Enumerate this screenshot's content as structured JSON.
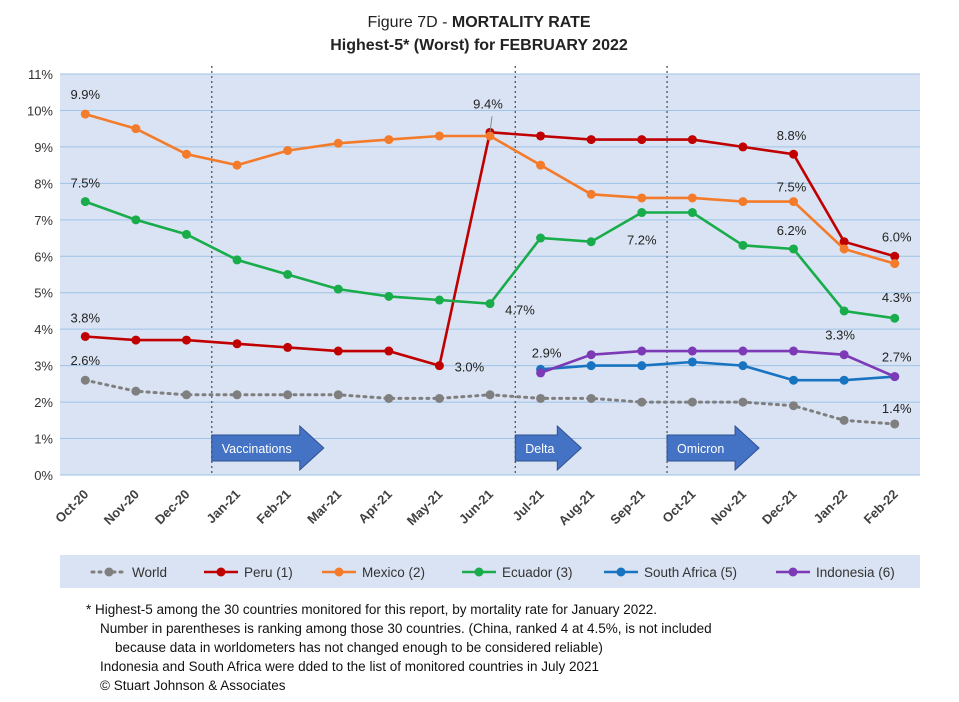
{
  "figure": {
    "title_prefix": "Figure 7D  - ",
    "title_bold": "MORTALITY RATE",
    "subtitle": "Highest-5* (Worst) for FEBRUARY 2022"
  },
  "chart_data": {
    "type": "line",
    "categories": [
      "Oct-20",
      "Nov-20",
      "Dec-20",
      "Jan-21",
      "Feb-21",
      "Mar-21",
      "Apr-21",
      "May-21",
      "Jun-21",
      "Jul-21",
      "Aug-21",
      "Sep-21",
      "Oct-21",
      "Nov-21",
      "Dec-21",
      "Jan-22",
      "Feb-22"
    ],
    "ylim": [
      0,
      11
    ],
    "yticks": [
      "0%",
      "1%",
      "2%",
      "3%",
      "4%",
      "5%",
      "6%",
      "7%",
      "8%",
      "9%",
      "10%",
      "11%"
    ],
    "grid": true,
    "legend_position": "bottom",
    "series": [
      {
        "name": "World",
        "color": "#7f7f7f",
        "dashed": true,
        "values": [
          2.6,
          2.3,
          2.2,
          2.2,
          2.2,
          2.2,
          2.1,
          2.1,
          2.2,
          2.1,
          2.1,
          2.0,
          2.0,
          2.0,
          1.9,
          1.5,
          1.4
        ]
      },
      {
        "name": "Peru (1)",
        "color": "#c00000",
        "dashed": false,
        "values": [
          3.8,
          3.7,
          3.7,
          3.6,
          3.5,
          3.4,
          3.4,
          3.0,
          9.4,
          9.3,
          9.2,
          9.2,
          9.2,
          9.0,
          8.8,
          6.4,
          6.0
        ]
      },
      {
        "name": "Mexico (2)",
        "color": "#f47b2a",
        "dashed": false,
        "values": [
          9.9,
          9.5,
          8.8,
          8.5,
          8.9,
          9.1,
          9.2,
          9.3,
          9.3,
          8.5,
          7.7,
          7.6,
          7.6,
          7.5,
          7.5,
          6.2,
          5.8
        ]
      },
      {
        "name": "Ecuador (3)",
        "color": "#18ac4a",
        "dashed": false,
        "values": [
          7.5,
          7.0,
          6.6,
          5.9,
          5.5,
          5.1,
          4.9,
          4.8,
          4.7,
          6.5,
          6.4,
          7.2,
          7.2,
          6.3,
          6.2,
          4.5,
          4.3
        ]
      },
      {
        "name": "South Africa (5)",
        "color": "#1874c0",
        "dashed": false,
        "values": [
          null,
          null,
          null,
          null,
          null,
          null,
          null,
          null,
          null,
          2.9,
          3.0,
          3.0,
          3.1,
          3.0,
          2.6,
          2.6,
          2.7
        ]
      },
      {
        "name": "Indonesia (6)",
        "color": "#7d3ab7",
        "dashed": false,
        "values": [
          null,
          null,
          null,
          null,
          null,
          null,
          null,
          null,
          null,
          2.8,
          3.3,
          3.4,
          3.4,
          3.4,
          3.4,
          3.3,
          2.7
        ]
      }
    ],
    "data_labels": [
      {
        "text": "9.9%",
        "x": "Oct-20",
        "y": 9.9
      },
      {
        "text": "7.5%",
        "x": "Oct-20",
        "y": 7.5
      },
      {
        "text": "3.8%",
        "x": "Oct-20",
        "y": 3.8
      },
      {
        "text": "2.6%",
        "x": "Oct-20",
        "y": 2.6
      },
      {
        "text": "3.0%",
        "x": "May-21",
        "y": 3.0
      },
      {
        "text": "9.4%",
        "x": "Jun-21",
        "y": 9.4
      },
      {
        "text": "4.7%",
        "x": "Jun-21",
        "y": 4.7
      },
      {
        "text": "2.9%",
        "x": "Jul-21",
        "y": 2.9
      },
      {
        "text": "7.2%",
        "x": "Sep-21",
        "y": 7.2
      },
      {
        "text": "8.8%",
        "x": "Dec-21",
        "y": 8.8
      },
      {
        "text": "7.5%",
        "x": "Dec-21",
        "y": 7.5
      },
      {
        "text": "6.2%",
        "x": "Dec-21",
        "y": 6.2
      },
      {
        "text": "3.3%",
        "x": "Jan-22",
        "y": 3.3
      },
      {
        "text": "6.0%",
        "x": "Feb-22",
        "y": 6.0
      },
      {
        "text": "4.3%",
        "x": "Feb-22",
        "y": 4.3
      },
      {
        "text": "2.7%",
        "x": "Feb-22",
        "y": 2.7
      },
      {
        "text": "1.4%",
        "x": "Feb-22",
        "y": 1.4
      }
    ],
    "markers": [
      {
        "label": "Vaccinations",
        "x": "Jan-21"
      },
      {
        "label": "Delta",
        "x": "Jul-21"
      },
      {
        "label": "Omicron",
        "x": "Oct-21"
      }
    ],
    "colors": {
      "plot_bg": "#dae3f3",
      "arrow": "#4472c4",
      "gridline": "#9dc3e6"
    }
  },
  "notes": [
    "* Highest-5 among the 30 countries monitored for this report, by mortality rate for January 2022.",
    "Number in parentheses is ranking among those 30 countries.  (China, ranked 4 at 4.5%, is not included",
    "because data in worldometers has not changed enough to be considered reliable)",
    "Indonesia and South Africa were dded to the list of monitored countries in July 2021",
    "© Stuart Johnson & Associates"
  ]
}
